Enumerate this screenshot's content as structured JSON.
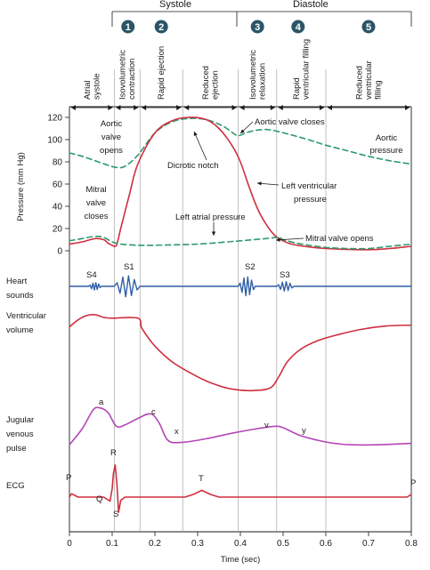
{
  "chart_data": {
    "type": "line",
    "x_axis": {
      "label": "Time (sec)",
      "range": [
        0,
        0.8
      ],
      "ticks": [
        "0",
        "0.1",
        "0.2",
        "0.3",
        "0.4",
        "0.5",
        "0.6",
        "0.7",
        "0.8"
      ]
    },
    "pressure_axis": {
      "label": "Pressure (mm Hg)",
      "range": [
        0,
        120
      ],
      "ticks": [
        "0",
        "20",
        "40",
        "60",
        "80",
        "100",
        "120"
      ]
    },
    "top": {
      "systole": "Systole",
      "diastole": "Diastole",
      "phase_numbers": [
        "1",
        "2",
        "3",
        "4",
        "5"
      ],
      "phases": [
        {
          "lines": [
            "Atrial",
            "systole"
          ]
        },
        {
          "lines": [
            "Isovolumetric",
            "contraction"
          ]
        },
        {
          "lines": [
            "Rapid ejection"
          ]
        },
        {
          "lines": [
            "Reduced",
            "ejection"
          ]
        },
        {
          "lines": [
            "Isovolumetric",
            "relaxation"
          ]
        },
        {
          "lines": [
            "Rapid",
            "ventricular filling"
          ]
        },
        {
          "lines": [
            "Reduced",
            "ventricular",
            "filling"
          ]
        }
      ]
    },
    "phase_boundaries_sec": [
      0.105,
      0.165,
      0.265,
      0.395,
      0.485,
      0.6
    ],
    "panel_labels": {
      "heart_sounds": [
        "Heart",
        "sounds"
      ],
      "ventricular_volume": [
        "Ventricular",
        "volume"
      ],
      "jugular": [
        "Jugular",
        "venous",
        "pulse"
      ],
      "ecg": "ECG"
    },
    "annotations": {
      "aortic_valve_opens": [
        "Aortic",
        "valve",
        "opens"
      ],
      "mitral_valve_closes": [
        "Mitral",
        "valve",
        "closes"
      ],
      "dicrotic_notch": "Dicrotic notch",
      "aortic_valve_closes": "Aortic valve closes",
      "aortic_pressure": [
        "Aortic",
        "pressure"
      ],
      "left_ventricular_pressure": [
        "Left ventricular",
        "pressure"
      ],
      "left_atrial_pressure": "Left atrial pressure",
      "mitral_valve_opens": "Mitral valve opens",
      "sounds": {
        "s4": "S4",
        "s1": "S1",
        "s2": "S2",
        "s3": "S3"
      },
      "jvp_waves": {
        "a": "a",
        "c": "c",
        "x": "x",
        "v": "v",
        "y": "y"
      },
      "ecg_waves": {
        "p_start": "P",
        "q": "Q",
        "r": "R",
        "s": "S",
        "t": "T",
        "p_end": "P"
      }
    },
    "series": [
      {
        "name": "Aortic pressure",
        "style": "dashed",
        "color": "#2e9a6e",
        "points": [
          [
            0.0,
            88
          ],
          [
            0.03,
            85
          ],
          [
            0.06,
            81
          ],
          [
            0.09,
            77
          ],
          [
            0.11,
            75
          ],
          [
            0.13,
            76
          ],
          [
            0.16,
            86
          ],
          [
            0.2,
            106
          ],
          [
            0.24,
            116
          ],
          [
            0.28,
            119
          ],
          [
            0.32,
            118
          ],
          [
            0.36,
            112
          ],
          [
            0.39,
            104
          ],
          [
            0.4,
            104
          ],
          [
            0.42,
            107
          ],
          [
            0.45,
            109
          ],
          [
            0.48,
            108
          ],
          [
            0.55,
            101
          ],
          [
            0.6,
            95
          ],
          [
            0.65,
            90
          ],
          [
            0.7,
            85
          ],
          [
            0.75,
            81
          ],
          [
            0.8,
            78
          ]
        ]
      },
      {
        "name": "Left ventricular pressure",
        "style": "solid",
        "color": "#cf2f3f",
        "points": [
          [
            0.0,
            6
          ],
          [
            0.03,
            8
          ],
          [
            0.06,
            11
          ],
          [
            0.08,
            10
          ],
          [
            0.09,
            7
          ],
          [
            0.1,
            5
          ],
          [
            0.11,
            5
          ],
          [
            0.12,
            20
          ],
          [
            0.14,
            50
          ],
          [
            0.16,
            78
          ],
          [
            0.2,
            106
          ],
          [
            0.24,
            117
          ],
          [
            0.28,
            120
          ],
          [
            0.32,
            118
          ],
          [
            0.35,
            110
          ],
          [
            0.38,
            95
          ],
          [
            0.4,
            80
          ],
          [
            0.42,
            58
          ],
          [
            0.44,
            38
          ],
          [
            0.46,
            24
          ],
          [
            0.48,
            14
          ],
          [
            0.5,
            9
          ],
          [
            0.52,
            6
          ],
          [
            0.55,
            4
          ],
          [
            0.6,
            2
          ],
          [
            0.7,
            1
          ],
          [
            0.75,
            2
          ],
          [
            0.8,
            4
          ]
        ]
      },
      {
        "name": "Left atrial pressure",
        "style": "dashed",
        "color": "#2e9a6e",
        "points": [
          [
            0.0,
            9
          ],
          [
            0.03,
            11
          ],
          [
            0.06,
            13
          ],
          [
            0.08,
            12
          ],
          [
            0.1,
            8
          ],
          [
            0.12,
            6
          ],
          [
            0.16,
            5
          ],
          [
            0.2,
            5
          ],
          [
            0.3,
            6
          ],
          [
            0.4,
            9
          ],
          [
            0.46,
            11
          ],
          [
            0.49,
            12
          ],
          [
            0.5,
            10
          ],
          [
            0.53,
            7
          ],
          [
            0.56,
            5
          ],
          [
            0.6,
            3
          ],
          [
            0.65,
            2
          ],
          [
            0.7,
            2
          ],
          [
            0.75,
            4
          ],
          [
            0.8,
            6
          ]
        ]
      },
      {
        "name": "Ventricular volume",
        "style": "solid",
        "color": "#cf2f3f",
        "scale": [
          0,
          1
        ],
        "points": [
          [
            0.0,
            0.82
          ],
          [
            0.02,
            0.9
          ],
          [
            0.04,
            0.95
          ],
          [
            0.06,
            0.96
          ],
          [
            0.08,
            0.93
          ],
          [
            0.1,
            0.92
          ],
          [
            0.16,
            0.92
          ],
          [
            0.17,
            0.8
          ],
          [
            0.2,
            0.6
          ],
          [
            0.24,
            0.42
          ],
          [
            0.28,
            0.3
          ],
          [
            0.32,
            0.2
          ],
          [
            0.36,
            0.13
          ],
          [
            0.39,
            0.1
          ],
          [
            0.43,
            0.09
          ],
          [
            0.47,
            0.12
          ],
          [
            0.49,
            0.25
          ],
          [
            0.51,
            0.42
          ],
          [
            0.54,
            0.56
          ],
          [
            0.58,
            0.66
          ],
          [
            0.62,
            0.72
          ],
          [
            0.68,
            0.79
          ],
          [
            0.74,
            0.83
          ],
          [
            0.8,
            0.84
          ]
        ]
      },
      {
        "name": "Jugular venous pulse",
        "style": "solid",
        "color": "#b447b5",
        "scale": [
          0,
          1
        ],
        "points": [
          [
            0.0,
            0.15
          ],
          [
            0.03,
            0.5
          ],
          [
            0.055,
            0.9
          ],
          [
            0.07,
            0.95
          ],
          [
            0.09,
            0.85
          ],
          [
            0.11,
            0.55
          ],
          [
            0.13,
            0.58
          ],
          [
            0.16,
            0.72
          ],
          [
            0.19,
            0.82
          ],
          [
            0.21,
            0.62
          ],
          [
            0.23,
            0.25
          ],
          [
            0.26,
            0.2
          ],
          [
            0.32,
            0.28
          ],
          [
            0.38,
            0.4
          ],
          [
            0.44,
            0.5
          ],
          [
            0.48,
            0.55
          ],
          [
            0.5,
            0.52
          ],
          [
            0.54,
            0.35
          ],
          [
            0.58,
            0.25
          ],
          [
            0.62,
            0.18
          ],
          [
            0.66,
            0.15
          ],
          [
            0.72,
            0.15
          ],
          [
            0.8,
            0.18
          ]
        ]
      },
      {
        "name": "ECG",
        "style": "solid",
        "color": "#cf2f3f",
        "scale": [
          -0.5,
          1
        ],
        "points": [
          [
            0.0,
            0.0
          ],
          [
            0.005,
            0.1
          ],
          [
            0.02,
            0.0
          ],
          [
            0.08,
            0.0
          ],
          [
            0.095,
            -0.12
          ],
          [
            0.1,
            0.25
          ],
          [
            0.103,
            0.7
          ],
          [
            0.107,
            0.95
          ],
          [
            0.111,
            0.4
          ],
          [
            0.115,
            -0.45
          ],
          [
            0.12,
            -0.1
          ],
          [
            0.13,
            0.0
          ],
          [
            0.27,
            0.0
          ],
          [
            0.29,
            0.08
          ],
          [
            0.31,
            0.2
          ],
          [
            0.33,
            0.08
          ],
          [
            0.35,
            0.0
          ],
          [
            0.79,
            0.0
          ],
          [
            0.8,
            0.08
          ]
        ]
      }
    ],
    "heart_sounds": {
      "color": "#2f5fa6",
      "bursts": [
        {
          "label": "S4",
          "x0": 0.045,
          "x1": 0.075,
          "amp": 0.35
        },
        {
          "label": "S1",
          "x0": 0.105,
          "x1": 0.165,
          "amp": 1.0
        },
        {
          "label": "S2",
          "x0": 0.395,
          "x1": 0.435,
          "amp": 0.9
        },
        {
          "label": "S3",
          "x0": 0.485,
          "x1": 0.525,
          "amp": 0.45
        }
      ]
    }
  }
}
